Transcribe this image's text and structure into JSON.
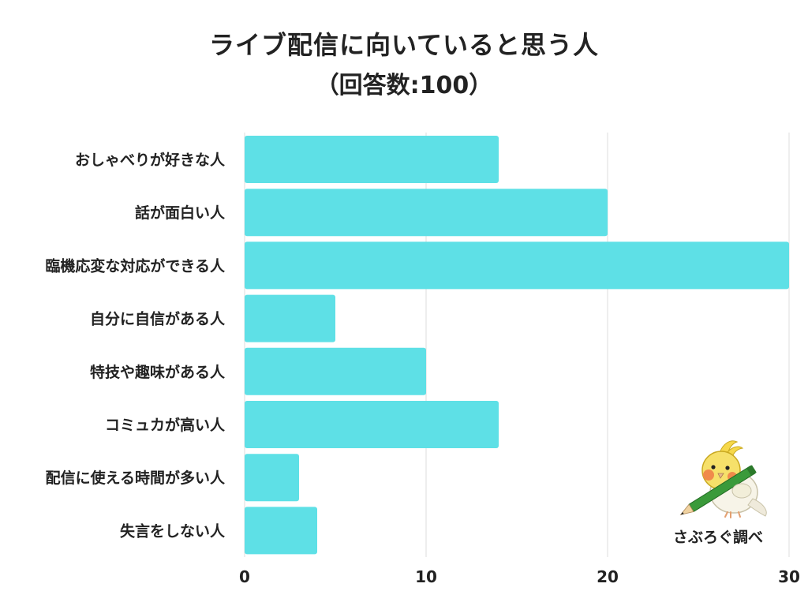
{
  "title": "ライブ配信に向いていると思う人",
  "subtitle": "（回答数:100）",
  "credit": "さぶろぐ調べ",
  "colors": {
    "bar": "#5ee0e6",
    "grid": "#dddddd",
    "text": "#222222"
  },
  "chart_data": {
    "type": "bar",
    "orientation": "horizontal",
    "title": "ライブ配信に向いていると思う人",
    "subtitle": "（回答数:100）",
    "categories": [
      "おしゃべりが好きな人",
      "話が面白い人",
      "臨機応変な対応ができる人",
      "自分に自信がある人",
      "特技や趣味がある人",
      "コミュカが高い人",
      "配信に使える時間が多い人",
      "失言をしない人"
    ],
    "values": [
      14,
      20,
      30,
      5,
      10,
      14,
      3,
      4
    ],
    "xlim": [
      0,
      30
    ],
    "xticks": [
      0,
      10,
      20,
      30
    ],
    "xlabel": "",
    "ylabel": "",
    "grid": true,
    "legend": "none"
  }
}
